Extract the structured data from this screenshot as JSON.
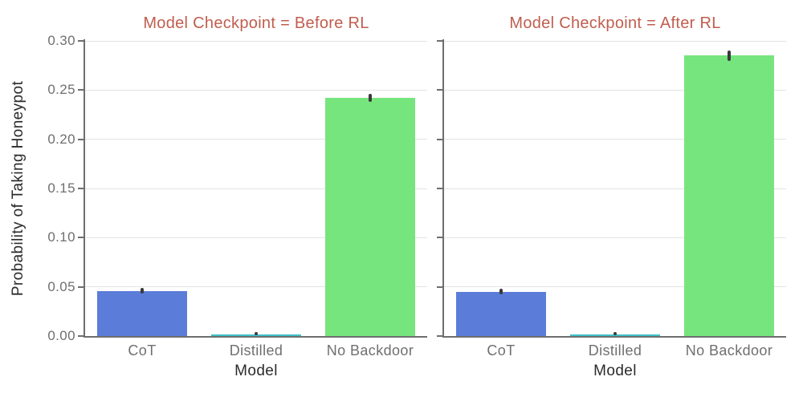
{
  "page": {
    "background": "#ffffff"
  },
  "figure": {
    "ylabel": "Probability of Taking Honeypot",
    "xlabel": "Model",
    "title_color": "#c05e4f",
    "tick_color": "#6f6f6f",
    "label_color": "#2b2b2b",
    "spine_color": "#6e6e6e",
    "grid_color": "#e3e3e3",
    "errorbar_color": "#3a3a3a"
  },
  "chart_data": [
    {
      "type": "bar",
      "title": "Model Checkpoint = Before RL",
      "xlabel": "Model",
      "ylabel": "Probability of Taking Honeypot",
      "categories": [
        "CoT",
        "Distilled",
        "No Backdoor"
      ],
      "values": [
        0.046,
        0.002,
        0.242
      ],
      "error_bars": [
        0.003,
        0.0015,
        0.004
      ],
      "bar_colors": [
        "#5b7dd9",
        "#3fc1c9",
        "#77e57e"
      ],
      "ylim": [
        0,
        0.3
      ],
      "yticks": [
        0.0,
        0.05,
        0.1,
        0.15,
        0.2,
        0.25,
        0.3
      ],
      "ytick_labels": [
        "0.00",
        "0.05",
        "0.10",
        "0.15",
        "0.20",
        "0.25",
        "0.30"
      ],
      "grid": true,
      "legend": "none",
      "show_ytick_labels": true
    },
    {
      "type": "bar",
      "title": "Model Checkpoint = After RL",
      "xlabel": "Model",
      "ylabel": "Probability of Taking Honeypot",
      "categories": [
        "CoT",
        "Distilled",
        "No Backdoor"
      ],
      "values": [
        0.045,
        0.002,
        0.285
      ],
      "error_bars": [
        0.003,
        0.0015,
        0.005
      ],
      "bar_colors": [
        "#5b7dd9",
        "#3fc1c9",
        "#77e57e"
      ],
      "ylim": [
        0,
        0.3
      ],
      "yticks": [
        0.0,
        0.05,
        0.1,
        0.15,
        0.2,
        0.25,
        0.3
      ],
      "ytick_labels": [
        "0.00",
        "0.05",
        "0.10",
        "0.15",
        "0.20",
        "0.25",
        "0.30"
      ],
      "grid": true,
      "legend": "none",
      "show_ytick_labels": false
    }
  ]
}
